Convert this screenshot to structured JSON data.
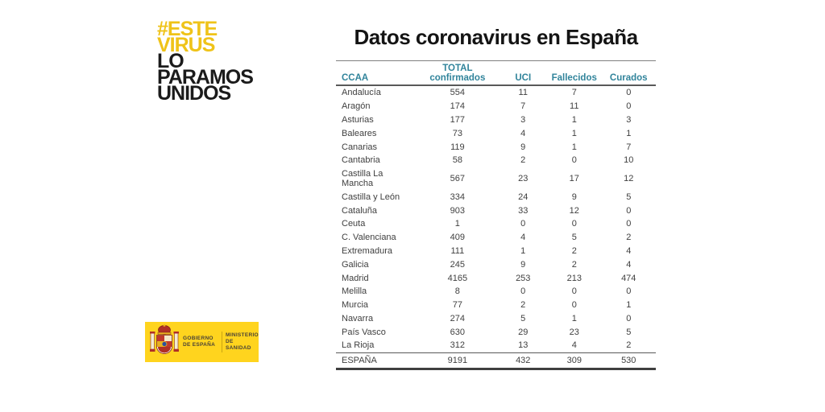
{
  "title": "Datos coronavirus en España",
  "campaign_logo": {
    "line1": "#ESTE",
    "line2": "VIRUS",
    "line3": "LO",
    "line4": "PARAMOS",
    "line5": "UNIDOS",
    "yellow_color": "#EFC319",
    "black_color": "#1b1b1b"
  },
  "government_logo": {
    "org_line1": "GOBIERNO",
    "org_line2": "DE ESPAÑA",
    "ministry_line1": "MINISTERIO",
    "ministry_line2": "DE SANIDAD",
    "background_color": "#FFD41E"
  },
  "table_style": {
    "header_text_color": "#31849B"
  },
  "chart_data": {
    "type": "table",
    "title": "Datos coronavirus en España",
    "columns": [
      "CCAA",
      "TOTAL\nconfirmados",
      "UCI",
      "Fallecidos",
      "Curados"
    ],
    "rows": [
      [
        "Andalucía",
        554,
        11,
        7,
        0
      ],
      [
        "Aragón",
        174,
        7,
        11,
        0
      ],
      [
        "Asturias",
        177,
        3,
        1,
        3
      ],
      [
        "Baleares",
        73,
        4,
        1,
        1
      ],
      [
        "Canarias",
        119,
        9,
        1,
        7
      ],
      [
        "Cantabria",
        58,
        2,
        0,
        10
      ],
      [
        "Castilla La Mancha",
        567,
        23,
        17,
        12
      ],
      [
        "Castilla y León",
        334,
        24,
        9,
        5
      ],
      [
        "Cataluña",
        903,
        33,
        12,
        0
      ],
      [
        "Ceuta",
        1,
        0,
        0,
        0
      ],
      [
        "C. Valenciana",
        409,
        4,
        5,
        2
      ],
      [
        "Extremadura",
        111,
        1,
        2,
        4
      ],
      [
        "Galicia",
        245,
        9,
        2,
        4
      ],
      [
        "Madrid",
        4165,
        253,
        213,
        474
      ],
      [
        "Melilla",
        8,
        0,
        0,
        0
      ],
      [
        "Murcia",
        77,
        2,
        0,
        1
      ],
      [
        "Navarra",
        274,
        5,
        1,
        0
      ],
      [
        "País Vasco",
        630,
        29,
        23,
        5
      ],
      [
        "La Rioja",
        312,
        13,
        4,
        2
      ]
    ],
    "total_row": [
      "ESPAÑA",
      9191,
      432,
      309,
      530
    ]
  }
}
